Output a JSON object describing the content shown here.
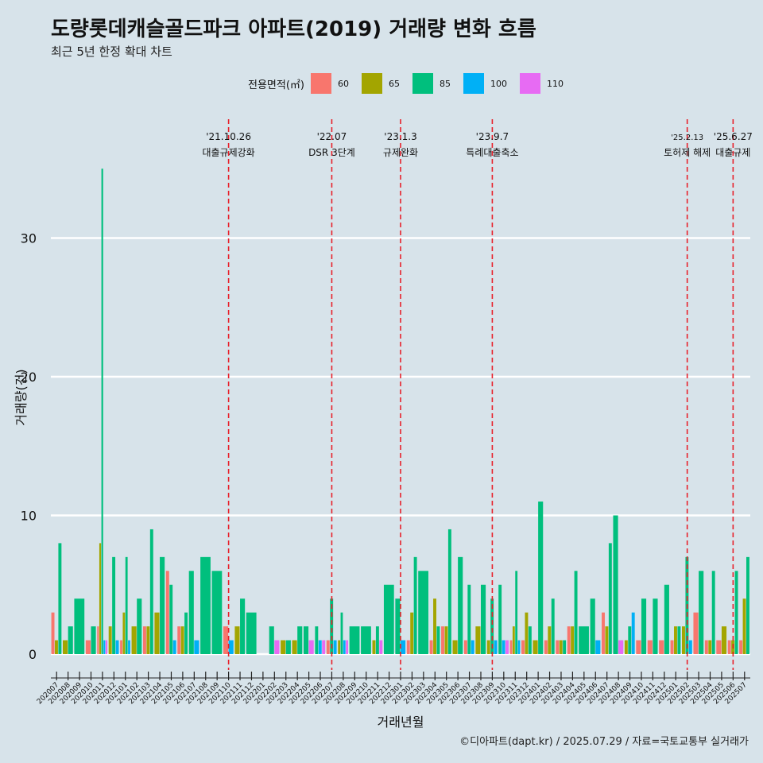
{
  "title": "도량롯데캐슬골드파크 아파트(2019) 거래량 변화 흐름",
  "subtitle": "최근 5년 한정 확대 차트",
  "caption": "©디아파트(dapt.kr) / 2025.07.29 / 자료=국토교통부 실거래가",
  "legend": {
    "title": "전용면적(㎡)",
    "items": [
      {
        "label": "60",
        "color": "#F8766D"
      },
      {
        "label": "65",
        "color": "#A3A500"
      },
      {
        "label": "85",
        "color": "#00BF7D"
      },
      {
        "label": "100",
        "color": "#00B0F6"
      },
      {
        "label": "110",
        "color": "#E76BF3"
      }
    ]
  },
  "chart_data": {
    "type": "bar",
    "xlabel": "거래년월",
    "ylabel": "거래량(건)",
    "ylim": [
      0,
      35
    ],
    "yticks": [
      0,
      10,
      20,
      30
    ],
    "grid": true,
    "categories": [
      "202007",
      "202008",
      "202009",
      "202010",
      "202011",
      "202012",
      "202101",
      "202102",
      "202103",
      "202104",
      "202105",
      "202106",
      "202107",
      "202108",
      "202109",
      "202110",
      "202111",
      "202112",
      "202201",
      "202202",
      "202203",
      "202204",
      "202205",
      "202206",
      "202207",
      "202208",
      "202209",
      "202210",
      "202211",
      "202212",
      "202301",
      "202302",
      "202303",
      "202304",
      "202305",
      "202306",
      "202307",
      "202308",
      "202309",
      "202310",
      "202311",
      "202312",
      "202401",
      "202402",
      "202403",
      "202404",
      "202405",
      "202406",
      "202407",
      "202408",
      "202409",
      "202410",
      "202411",
      "202412",
      "202501",
      "202502",
      "202503",
      "202504",
      "202505",
      "202506",
      "202507"
    ],
    "series": [
      {
        "name": "60",
        "values": [
          3,
          0,
          0,
          1,
          2,
          0,
          1,
          0,
          2,
          0,
          6,
          2,
          0,
          0,
          0,
          2,
          0,
          0,
          0,
          0,
          0,
          0,
          0,
          0,
          1,
          0,
          0,
          0,
          0,
          0,
          0,
          1,
          0,
          1,
          2,
          0,
          1,
          0,
          0,
          0,
          1,
          1,
          0,
          1,
          1,
          2,
          0,
          0,
          3,
          0,
          0,
          1,
          1,
          1,
          1,
          0,
          3,
          1,
          1,
          1,
          1
        ]
      },
      {
        "name": "65",
        "values": [
          1,
          1,
          0,
          0,
          8,
          2,
          3,
          2,
          2,
          3,
          0,
          2,
          0,
          0,
          0,
          0,
          2,
          0,
          0,
          0,
          1,
          1,
          0,
          0,
          0,
          1,
          0,
          0,
          1,
          0,
          0,
          3,
          0,
          4,
          2,
          1,
          0,
          2,
          1,
          0,
          2,
          3,
          1,
          2,
          1,
          2,
          0,
          0,
          2,
          0,
          1,
          0,
          0,
          0,
          2,
          2,
          0,
          1,
          2,
          1,
          4
        ]
      },
      {
        "name": "85",
        "values": [
          8,
          2,
          4,
          2,
          35,
          7,
          7,
          4,
          9,
          7,
          5,
          3,
          6,
          7,
          6,
          0,
          4,
          3,
          0,
          2,
          1,
          2,
          2,
          2,
          4,
          3,
          2,
          2,
          2,
          5,
          4,
          7,
          6,
          2,
          9,
          7,
          5,
          5,
          4,
          5,
          6,
          2,
          11,
          4,
          1,
          6,
          2,
          4,
          8,
          10,
          2,
          4,
          4,
          5,
          2,
          7,
          6,
          6,
          0,
          6,
          7
        ]
      },
      {
        "name": "100",
        "values": [
          0,
          0,
          0,
          0,
          1,
          1,
          1,
          0,
          0,
          0,
          1,
          0,
          1,
          0,
          0,
          1,
          0,
          0,
          0,
          0,
          0,
          0,
          0,
          1,
          1,
          1,
          0,
          0,
          0,
          0,
          1,
          0,
          0,
          0,
          0,
          0,
          1,
          0,
          1,
          1,
          1,
          0,
          0,
          0,
          0,
          0,
          0,
          1,
          0,
          0,
          3,
          0,
          0,
          0,
          0,
          1,
          0,
          0,
          0,
          0,
          0
        ]
      },
      {
        "name": "110",
        "values": [
          0,
          0,
          0,
          0,
          1,
          0,
          0,
          0,
          0,
          0,
          0,
          0,
          0,
          0,
          0,
          0,
          0,
          0,
          0,
          1,
          0,
          0,
          1,
          1,
          0,
          1,
          0,
          0,
          1,
          0,
          0,
          0,
          0,
          0,
          0,
          0,
          0,
          0,
          0,
          1,
          0,
          0,
          0,
          0,
          0,
          0,
          0,
          0,
          0,
          1,
          0,
          0,
          0,
          0,
          0,
          0,
          0,
          0,
          0,
          0,
          0
        ]
      }
    ],
    "annotations": [
      {
        "date": "'21.10.26",
        "label": "대출규제강화",
        "category": "202110"
      },
      {
        "date": "'22.07",
        "label": "DSR 3단계",
        "category": "202207"
      },
      {
        "date": "'23.1.3",
        "label": "규제완화",
        "category": "202301"
      },
      {
        "date": "'23.9.7",
        "label": "특례대출축소",
        "category": "202309"
      },
      {
        "date": "'25.2.13",
        "label": "토허제 해제",
        "category": "202502"
      },
      {
        "date": "'25.6.27",
        "label": "대출규제",
        "category": "202506"
      }
    ]
  }
}
